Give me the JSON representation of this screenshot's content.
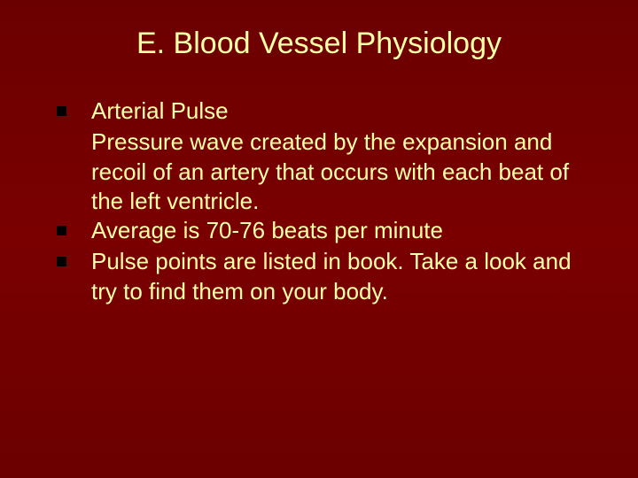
{
  "slide": {
    "background_gradient_top": "#6b0000",
    "background_gradient_mid": "#7a0000",
    "background_gradient_bottom": "#6b0000",
    "text_color": "#ffffa8",
    "bullet_color": "#000000",
    "title": "E.  Blood Vessel Physiology",
    "title_fontsize": 34,
    "body_fontsize": 26,
    "bullets": [
      {
        "label": "Arterial Pulse",
        "sub": "Pressure wave created by the expansion and recoil of an artery that occurs with each beat of the left ventricle."
      },
      {
        "label": "Average is 70-76 beats per minute",
        "sub": null
      },
      {
        "label": "Pulse points are listed in book.  Take a look and try to find them on your body.",
        "sub": null
      }
    ]
  }
}
